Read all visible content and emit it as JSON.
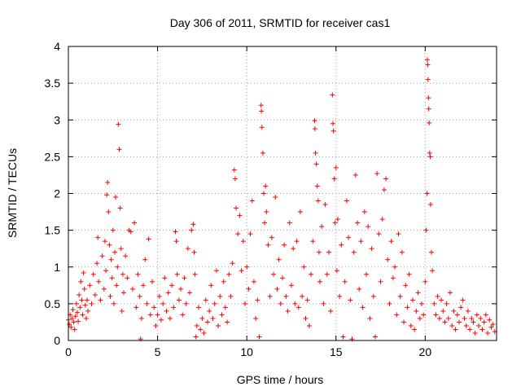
{
  "chart_data": {
    "type": "scatter",
    "title": "Day 306 of 2011, SRMTID for receiver cas1",
    "xlabel": "GPS time / hours",
    "ylabel": "SRMTID / TECUs",
    "xlim": [
      0,
      24
    ],
    "ylim": [
      0,
      4
    ],
    "xticks": [
      0,
      5,
      10,
      15,
      20
    ],
    "xtick_labels": [
      "0",
      "5",
      "10",
      "15",
      "20"
    ],
    "yticks": [
      0,
      0.5,
      1,
      1.5,
      2,
      2.5,
      3,
      3.5,
      4
    ],
    "ytick_labels": [
      "0",
      "0.5",
      "1",
      "1.5",
      "2",
      "2.5",
      "3",
      "3.5",
      "4"
    ],
    "grid": true,
    "marker": "plus",
    "color": "#ff0000",
    "series": [
      {
        "name": "cas1",
        "points": [
          [
            0.0,
            0.28
          ],
          [
            0.05,
            0.22
          ],
          [
            0.1,
            0.35
          ],
          [
            0.15,
            0.18
          ],
          [
            0.2,
            0.3
          ],
          [
            0.25,
            0.42
          ],
          [
            0.3,
            0.25
          ],
          [
            0.35,
            0.15
          ],
          [
            0.4,
            0.33
          ],
          [
            0.45,
            0.5
          ],
          [
            0.5,
            0.38
          ],
          [
            0.55,
            0.26
          ],
          [
            0.6,
            0.62
          ],
          [
            0.65,
            0.45
          ],
          [
            0.7,
            0.8
          ],
          [
            0.75,
            0.55
          ],
          [
            0.8,
            0.35
          ],
          [
            0.85,
            0.92
          ],
          [
            0.9,
            0.7
          ],
          [
            0.95,
            0.48
          ],
          [
            1.0,
            0.3
          ],
          [
            1.05,
            0.55
          ],
          [
            1.1,
            0.4
          ],
          [
            1.2,
            0.75
          ],
          [
            1.3,
            0.5
          ],
          [
            1.4,
            0.9
          ],
          [
            1.5,
            0.62
          ],
          [
            1.6,
            1.05
          ],
          [
            1.65,
            1.4
          ],
          [
            1.7,
            0.8
          ],
          [
            1.8,
            0.55
          ],
          [
            1.9,
            1.15
          ],
          [
            2.0,
            0.7
          ],
          [
            2.05,
            1.35
          ],
          [
            2.1,
            0.95
          ],
          [
            2.15,
            1.98
          ],
          [
            2.2,
            2.15
          ],
          [
            2.25,
            1.75
          ],
          [
            2.3,
            1.3
          ],
          [
            2.35,
            0.6
          ],
          [
            2.4,
            1.1
          ],
          [
            2.45,
            0.85
          ],
          [
            2.5,
            1.5
          ],
          [
            2.55,
            0.5
          ],
          [
            2.6,
            1.2
          ],
          [
            2.65,
            1.95
          ],
          [
            2.7,
            0.75
          ],
          [
            2.75,
            1.0
          ],
          [
            2.8,
            2.94
          ],
          [
            2.85,
            2.6
          ],
          [
            2.9,
            1.8
          ],
          [
            2.95,
            1.25
          ],
          [
            3.0,
            0.4
          ],
          [
            3.05,
            0.9
          ],
          [
            3.1,
            0.65
          ],
          [
            3.2,
            1.15
          ],
          [
            3.3,
            0.85
          ],
          [
            3.4,
            1.5
          ],
          [
            3.5,
            1.48
          ],
          [
            3.6,
            0.7
          ],
          [
            3.7,
            1.6
          ],
          [
            3.8,
            0.45
          ],
          [
            3.9,
            0.9
          ],
          [
            4.0,
            0.6
          ],
          [
            4.05,
            0.02
          ],
          [
            4.1,
            0.3
          ],
          [
            4.2,
            0.75
          ],
          [
            4.3,
            1.1
          ],
          [
            4.4,
            0.5
          ],
          [
            4.5,
            1.38
          ],
          [
            4.6,
            0.35
          ],
          [
            4.7,
            0.8
          ],
          [
            4.8,
            0.45
          ],
          [
            4.9,
            0.2
          ],
          [
            5.0,
            0.35
          ],
          [
            5.1,
            0.6
          ],
          [
            5.2,
            0.28
          ],
          [
            5.3,
            0.5
          ],
          [
            5.4,
            0.85
          ],
          [
            5.5,
            0.4
          ],
          [
            5.6,
            0.65
          ],
          [
            5.7,
            0.3
          ],
          [
            5.8,
            0.75
          ],
          [
            5.9,
            0.45
          ],
          [
            6.0,
            1.48
          ],
          [
            6.05,
            1.35
          ],
          [
            6.1,
            0.9
          ],
          [
            6.2,
            0.55
          ],
          [
            6.3,
            0.7
          ],
          [
            6.4,
            0.35
          ],
          [
            6.5,
            0.85
          ],
          [
            6.6,
            0.5
          ],
          [
            6.7,
            1.25
          ],
          [
            6.8,
            0.65
          ],
          [
            6.9,
            1.5
          ],
          [
            7.0,
            1.58
          ],
          [
            7.05,
            1.2
          ],
          [
            7.1,
            0.9
          ],
          [
            7.15,
            0.05
          ],
          [
            7.2,
            0.2
          ],
          [
            7.3,
            0.45
          ],
          [
            7.4,
            0.15
          ],
          [
            7.5,
            0.3
          ],
          [
            7.6,
            0.1
          ],
          [
            7.7,
            0.55
          ],
          [
            7.8,
            0.25
          ],
          [
            7.9,
            0.4
          ],
          [
            8.0,
            0.75
          ],
          [
            8.1,
            0.3
          ],
          [
            8.2,
            0.5
          ],
          [
            8.3,
            0.95
          ],
          [
            8.4,
            0.2
          ],
          [
            8.5,
            0.6
          ],
          [
            8.6,
            0.35
          ],
          [
            8.7,
            0.8
          ],
          [
            8.8,
            0.45
          ],
          [
            8.9,
            0.25
          ],
          [
            9.0,
            0.9
          ],
          [
            9.1,
            0.6
          ],
          [
            9.2,
            1.05
          ],
          [
            9.3,
            2.32
          ],
          [
            9.35,
            2.2
          ],
          [
            9.4,
            1.8
          ],
          [
            9.5,
            1.45
          ],
          [
            9.6,
            1.7
          ],
          [
            9.7,
            0.95
          ],
          [
            9.8,
            1.35
          ],
          [
            9.9,
            0.5
          ],
          [
            10.0,
            1.0
          ],
          [
            10.1,
            0.7
          ],
          [
            10.2,
            1.45
          ],
          [
            10.3,
            1.9
          ],
          [
            10.4,
            0.8
          ],
          [
            10.5,
            0.3
          ],
          [
            10.6,
            0.55
          ],
          [
            10.7,
            0.05
          ],
          [
            10.8,
            3.2
          ],
          [
            10.82,
            3.12
          ],
          [
            10.85,
            2.9
          ],
          [
            10.9,
            2.55
          ],
          [
            10.95,
            2.0
          ],
          [
            11.0,
            1.6
          ],
          [
            11.05,
            2.1
          ],
          [
            11.1,
            1.75
          ],
          [
            11.2,
            1.3
          ],
          [
            11.3,
            0.6
          ],
          [
            11.4,
            1.4
          ],
          [
            11.5,
            0.9
          ],
          [
            11.6,
            1.95
          ],
          [
            11.7,
            0.7
          ],
          [
            11.8,
            1.1
          ],
          [
            11.9,
            0.5
          ],
          [
            12.0,
            0.85
          ],
          [
            12.1,
            1.3
          ],
          [
            12.2,
            0.6
          ],
          [
            12.3,
            0.4
          ],
          [
            12.4,
            1.6
          ],
          [
            12.5,
            0.75
          ],
          [
            12.6,
            1.25
          ],
          [
            12.7,
            0.5
          ],
          [
            12.8,
            1.35
          ],
          [
            12.9,
            0.45
          ],
          [
            13.0,
            1.75
          ],
          [
            13.1,
            0.6
          ],
          [
            13.2,
            1.0
          ],
          [
            13.3,
            0.3
          ],
          [
            13.4,
            0.55
          ],
          [
            13.5,
            0.2
          ],
          [
            13.6,
            0.9
          ],
          [
            13.7,
            1.35
          ],
          [
            13.8,
            2.99
          ],
          [
            13.82,
            2.88
          ],
          [
            13.85,
            2.55
          ],
          [
            13.9,
            2.4
          ],
          [
            13.95,
            2.1
          ],
          [
            14.0,
            1.9
          ],
          [
            14.05,
            1.2
          ],
          [
            14.1,
            0.8
          ],
          [
            14.2,
            1.55
          ],
          [
            14.3,
            0.5
          ],
          [
            14.4,
            1.85
          ],
          [
            14.5,
            0.9
          ],
          [
            14.6,
            1.2
          ],
          [
            14.7,
            0.4
          ],
          [
            14.8,
            3.34
          ],
          [
            14.83,
            2.95
          ],
          [
            14.86,
            2.85
          ],
          [
            14.9,
            2.2
          ],
          [
            14.95,
            1.6
          ],
          [
            15.0,
            2.35
          ],
          [
            15.05,
            0.95
          ],
          [
            15.1,
            1.65
          ],
          [
            15.2,
            0.6
          ],
          [
            15.3,
            1.3
          ],
          [
            15.4,
            0.05
          ],
          [
            15.5,
            0.8
          ],
          [
            15.6,
            1.9
          ],
          [
            15.7,
            1.4
          ],
          [
            15.8,
            0.55
          ],
          [
            15.9,
            0.02
          ],
          [
            16.0,
            1.2
          ],
          [
            16.1,
            2.25
          ],
          [
            16.2,
            1.6
          ],
          [
            16.3,
            0.7
          ],
          [
            16.4,
            1.35
          ],
          [
            16.5,
            0.45
          ],
          [
            16.6,
            1.75
          ],
          [
            16.7,
            0.9
          ],
          [
            16.8,
            1.55
          ],
          [
            16.9,
            0.3
          ],
          [
            17.0,
            1.25
          ],
          [
            17.1,
            0.6
          ],
          [
            17.2,
            0.05
          ],
          [
            17.3,
            2.27
          ],
          [
            17.4,
            1.45
          ],
          [
            17.5,
            0.8
          ],
          [
            17.6,
            1.65
          ],
          [
            17.7,
            2.05
          ],
          [
            17.8,
            2.2
          ],
          [
            17.9,
            1.1
          ],
          [
            18.0,
            0.5
          ],
          [
            18.1,
            1.35
          ],
          [
            18.2,
            0.85
          ],
          [
            18.3,
            1.0
          ],
          [
            18.4,
            0.35
          ],
          [
            18.5,
            1.45
          ],
          [
            18.6,
            0.6
          ],
          [
            18.7,
            1.2
          ],
          [
            18.8,
            0.25
          ],
          [
            18.9,
            0.75
          ],
          [
            19.0,
            0.45
          ],
          [
            19.1,
            0.9
          ],
          [
            19.2,
            0.2
          ],
          [
            19.3,
            0.55
          ],
          [
            19.4,
            0.15
          ],
          [
            19.5,
            0.4
          ],
          [
            19.6,
            0.65
          ],
          [
            19.7,
            0.3
          ],
          [
            19.8,
            0.5
          ],
          [
            19.9,
            0.35
          ],
          [
            20.0,
            0.8
          ],
          [
            20.05,
            1.5
          ],
          [
            20.1,
            2.0
          ],
          [
            20.12,
            3.82
          ],
          [
            20.14,
            3.75
          ],
          [
            20.16,
            3.55
          ],
          [
            20.18,
            3.3
          ],
          [
            20.2,
            3.15
          ],
          [
            20.22,
            2.96
          ],
          [
            20.25,
            2.55
          ],
          [
            20.28,
            2.5
          ],
          [
            20.3,
            1.85
          ],
          [
            20.35,
            1.2
          ],
          [
            20.4,
            0.95
          ],
          [
            20.5,
            0.5
          ],
          [
            20.6,
            0.35
          ],
          [
            20.7,
            0.6
          ],
          [
            20.8,
            0.3
          ],
          [
            20.9,
            0.55
          ],
          [
            21.0,
            0.4
          ],
          [
            21.1,
            0.25
          ],
          [
            21.2,
            0.5
          ],
          [
            21.3,
            0.3
          ],
          [
            21.4,
            0.65
          ],
          [
            21.5,
            0.2
          ],
          [
            21.6,
            0.4
          ],
          [
            21.7,
            0.15
          ],
          [
            21.8,
            0.35
          ],
          [
            21.9,
            0.25
          ],
          [
            22.0,
            0.45
          ],
          [
            22.1,
            0.55
          ],
          [
            22.2,
            0.3
          ],
          [
            22.3,
            0.2
          ],
          [
            22.4,
            0.4
          ],
          [
            22.5,
            0.15
          ],
          [
            22.6,
            0.3
          ],
          [
            22.7,
            0.25
          ],
          [
            22.8,
            0.1
          ],
          [
            22.9,
            0.35
          ],
          [
            23.0,
            0.2
          ],
          [
            23.1,
            0.3
          ],
          [
            23.2,
            0.15
          ],
          [
            23.3,
            0.25
          ],
          [
            23.4,
            0.35
          ],
          [
            23.5,
            0.1
          ],
          [
            23.6,
            0.28
          ],
          [
            23.7,
            0.18
          ],
          [
            23.8,
            0.22
          ],
          [
            23.9,
            0.12
          ]
        ]
      }
    ]
  }
}
